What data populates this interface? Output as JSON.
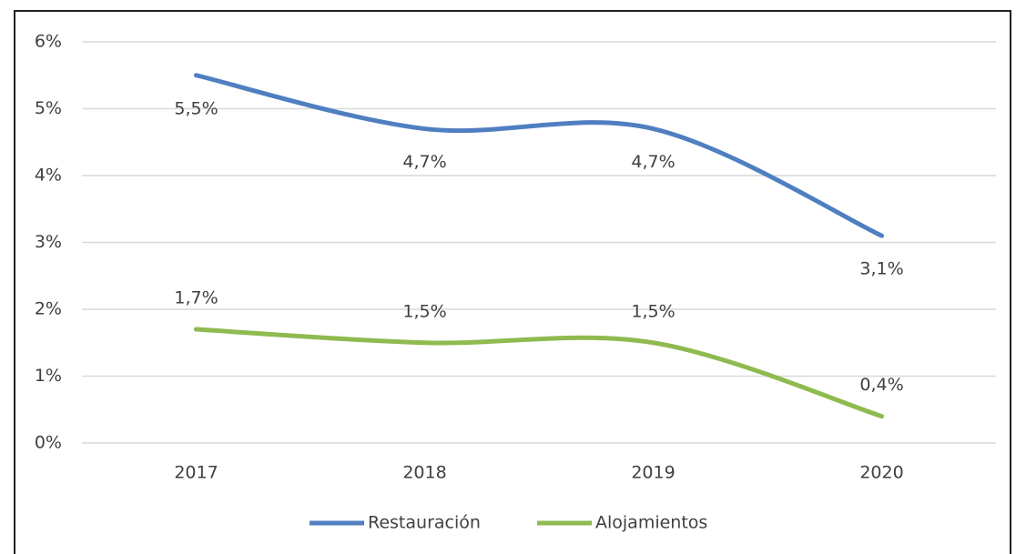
{
  "chart_data": {
    "type": "line",
    "categories": [
      "2017",
      "2018",
      "2019",
      "2020"
    ],
    "series": [
      {
        "name": "Restauración",
        "color": "#4f7fc0",
        "values": [
          5.5,
          4.7,
          4.7,
          3.1
        ],
        "value_labels": [
          "5,5%",
          "4,7%",
          "4,7%",
          "3,1%"
        ]
      },
      {
        "name": "Alojamientos",
        "color": "#8fba4f",
        "values": [
          1.7,
          1.5,
          1.5,
          0.4
        ],
        "value_labels": [
          "1,7%",
          "1,5%",
          "1,5%",
          "0,4%"
        ]
      }
    ],
    "ylim": [
      0,
      6
    ],
    "yticks": [
      {
        "value": 0,
        "label": "0%"
      },
      {
        "value": 1,
        "label": "1%"
      },
      {
        "value": 2,
        "label": "2%"
      },
      {
        "value": 3,
        "label": "3%"
      },
      {
        "value": 4,
        "label": "4%"
      },
      {
        "value": 5,
        "label": "5%"
      },
      {
        "value": 6,
        "label": "6%"
      }
    ],
    "grid": true,
    "smooth": true,
    "legend": "bottom"
  }
}
